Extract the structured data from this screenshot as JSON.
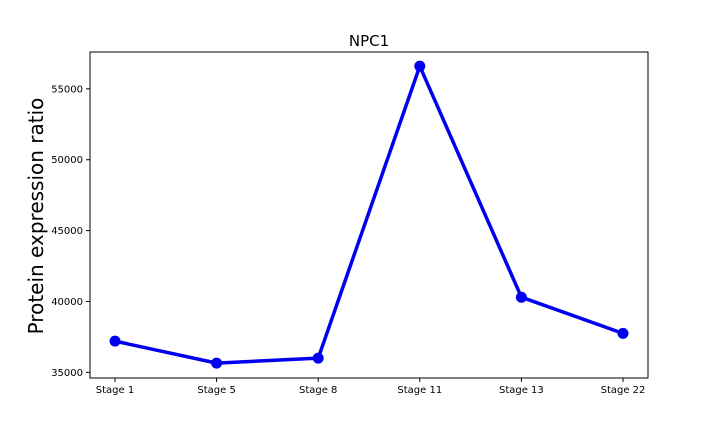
{
  "chart_data": {
    "type": "line",
    "title": "NPC1",
    "xlabel": "",
    "ylabel": "Protein expression ratio",
    "categories": [
      "Stage 1",
      "Stage 5",
      "Stage 8",
      "Stage 11",
      "Stage 13",
      "Stage 22"
    ],
    "series": [
      {
        "values": [
          37200,
          35650,
          36000,
          56600,
          40300,
          37750
        ]
      }
    ],
    "ylim": [
      34600,
      57600
    ],
    "yticks": [
      35000,
      40000,
      45000,
      50000,
      55000
    ],
    "ytick_labels": [
      "35000",
      "40000",
      "45000",
      "50000",
      "55000"
    ],
    "grid": false,
    "colors": {
      "line": "#0000ee",
      "marker": "#0000ee",
      "axes": "#000000"
    }
  }
}
